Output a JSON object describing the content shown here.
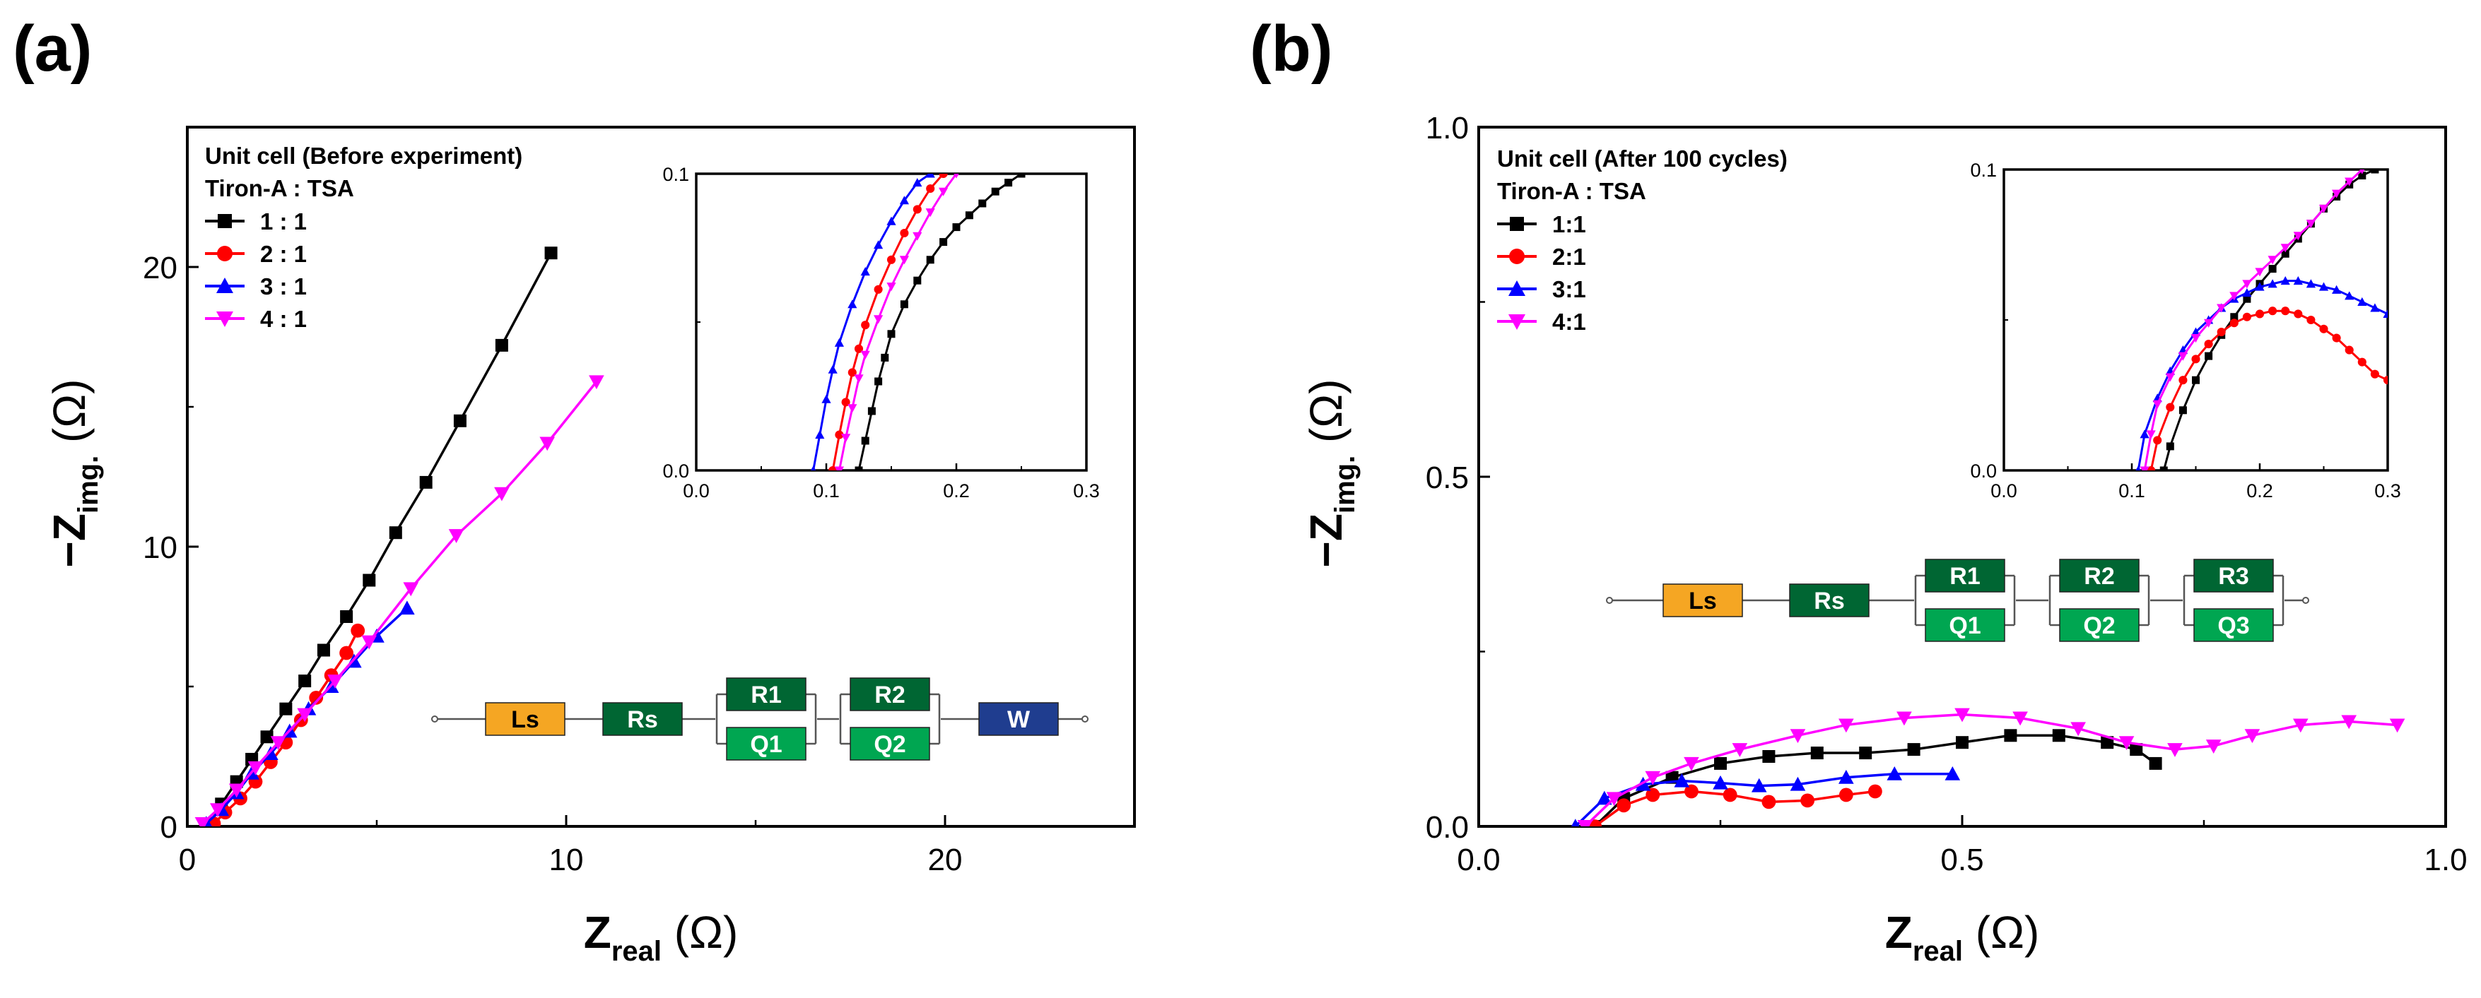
{
  "chart_data": [
    {
      "type": "line",
      "panel_label": "(a)",
      "xlabel": "Z",
      "xlabel_sub": "real",
      "xlabel_unit": " (Ω)",
      "ylabel_prefix": "−Z",
      "ylabel_sub": "img.",
      "ylabel_unit": " (Ω)",
      "xlim": [
        0,
        25
      ],
      "ylim": [
        0,
        25
      ],
      "xticks": [
        0,
        10,
        20
      ],
      "yticks": [
        0,
        10,
        20
      ],
      "legend_title_1": "Unit cell (Before experiment)",
      "legend_title_2": "Tiron-A : TSA",
      "series": [
        {
          "name": "1 : 1",
          "color": "#000000",
          "marker": "square",
          "x": [
            0.6,
            0.9,
            1.3,
            1.7,
            2.1,
            2.6,
            3.1,
            3.6,
            4.2,
            4.8,
            5.5,
            6.3,
            7.2,
            8.3,
            9.6
          ],
          "y": [
            0.1,
            0.8,
            1.6,
            2.4,
            3.2,
            4.2,
            5.2,
            6.3,
            7.5,
            8.8,
            10.5,
            12.3,
            14.5,
            17.2,
            20.5
          ]
        },
        {
          "name": "2 : 1",
          "color": "#ff0000",
          "marker": "circle",
          "x": [
            0.7,
            1.0,
            1.4,
            1.8,
            2.2,
            2.6,
            3.0,
            3.4,
            3.8,
            4.2,
            4.5
          ],
          "y": [
            0.1,
            0.5,
            1.0,
            1.6,
            2.3,
            3.0,
            3.8,
            4.6,
            5.4,
            6.2,
            7.0
          ]
        },
        {
          "name": "3 : 1",
          "color": "#0000ff",
          "marker": "triangle-up",
          "x": [
            0.5,
            0.9,
            1.3,
            1.7,
            2.2,
            2.7,
            3.2,
            3.8,
            4.4,
            5.0,
            5.8
          ],
          "y": [
            0.1,
            0.6,
            1.2,
            1.9,
            2.6,
            3.4,
            4.2,
            5.0,
            5.9,
            6.8,
            7.8
          ]
        },
        {
          "name": "4 : 1",
          "color": "#ff00ff",
          "marker": "triangle-down",
          "x": [
            0.4,
            0.8,
            1.3,
            1.8,
            2.4,
            3.1,
            3.9,
            4.8,
            5.9,
            7.1,
            8.3,
            9.5,
            10.8
          ],
          "y": [
            0.1,
            0.6,
            1.3,
            2.1,
            3.0,
            4.0,
            5.2,
            6.6,
            8.5,
            10.4,
            11.9,
            13.7,
            15.9
          ]
        }
      ],
      "inset": {
        "xlim": [
          0,
          0.3
        ],
        "ylim": [
          0,
          0.1
        ],
        "xticks": [
          0.0,
          0.1,
          0.2,
          0.3
        ],
        "yticks": [
          0.0,
          0.1
        ],
        "series": [
          {
            "name": "1 : 1",
            "color": "#000000",
            "marker": "square",
            "x": [
              0.125,
              0.13,
              0.135,
              0.14,
              0.145,
              0.15,
              0.16,
              0.17,
              0.18,
              0.19,
              0.2,
              0.21,
              0.22,
              0.23,
              0.24,
              0.25
            ],
            "y": [
              0.0,
              0.01,
              0.02,
              0.03,
              0.038,
              0.046,
              0.056,
              0.064,
              0.071,
              0.077,
              0.082,
              0.086,
              0.09,
              0.094,
              0.097,
              0.1
            ]
          },
          {
            "name": "2 : 1",
            "color": "#ff0000",
            "marker": "circle",
            "x": [
              0.105,
              0.11,
              0.115,
              0.12,
              0.125,
              0.13,
              0.14,
              0.15,
              0.16,
              0.17,
              0.18,
              0.19
            ],
            "y": [
              0.0,
              0.012,
              0.023,
              0.033,
              0.041,
              0.049,
              0.061,
              0.071,
              0.08,
              0.088,
              0.095,
              0.1
            ]
          },
          {
            "name": "3 : 1",
            "color": "#0000ff",
            "marker": "triangle-up",
            "x": [
              0.09,
              0.095,
              0.1,
              0.105,
              0.11,
              0.12,
              0.13,
              0.14,
              0.15,
              0.16,
              0.17,
              0.18
            ],
            "y": [
              0.0,
              0.012,
              0.024,
              0.034,
              0.043,
              0.056,
              0.067,
              0.076,
              0.084,
              0.091,
              0.097,
              0.1
            ]
          },
          {
            "name": "4 : 1",
            "color": "#ff00ff",
            "marker": "triangle-down",
            "x": [
              0.11,
              0.115,
              0.12,
              0.125,
              0.13,
              0.14,
              0.15,
              0.16,
              0.17,
              0.18,
              0.19,
              0.2
            ],
            "y": [
              0.0,
              0.011,
              0.021,
              0.031,
              0.039,
              0.051,
              0.062,
              0.071,
              0.079,
              0.087,
              0.094,
              0.1
            ]
          }
        ]
      },
      "circuit": {
        "labels": [
          "Ls",
          "Rs",
          "R1",
          "Q1",
          "R2",
          "Q2",
          "W"
        ],
        "colors": {
          "Ls": "#f5a623",
          "dark_green": "#006633",
          "light_green": "#00a651",
          "W": "#1f3d8f"
        }
      }
    },
    {
      "type": "line",
      "panel_label": "(b)",
      "xlabel": "Z",
      "xlabel_sub": "real",
      "xlabel_unit": " (Ω)",
      "ylabel_prefix": "−Z",
      "ylabel_sub": "img.",
      "ylabel_unit": " (Ω)",
      "xlim": [
        0,
        1.0
      ],
      "ylim": [
        0,
        1.0
      ],
      "xticks": [
        0.0,
        0.5,
        1.0
      ],
      "yticks": [
        0.0,
        0.5,
        1.0
      ],
      "legend_title_1": "Unit cell (After 100 cycles)",
      "legend_title_2": "Tiron-A : TSA",
      "series": [
        {
          "name": "1:1",
          "color": "#000000",
          "marker": "square",
          "x": [
            0.12,
            0.15,
            0.2,
            0.25,
            0.3,
            0.35,
            0.4,
            0.45,
            0.5,
            0.55,
            0.6,
            0.65,
            0.68,
            0.7
          ],
          "y": [
            0.0,
            0.04,
            0.07,
            0.09,
            0.1,
            0.105,
            0.105,
            0.11,
            0.12,
            0.13,
            0.13,
            0.12,
            0.11,
            0.09
          ]
        },
        {
          "name": "2:1",
          "color": "#ff0000",
          "marker": "circle",
          "x": [
            0.12,
            0.15,
            0.18,
            0.22,
            0.26,
            0.3,
            0.34,
            0.38,
            0.41
          ],
          "y": [
            0.0,
            0.03,
            0.045,
            0.05,
            0.045,
            0.035,
            0.037,
            0.045,
            0.05
          ]
        },
        {
          "name": "3:1",
          "color": "#0000ff",
          "marker": "triangle-up",
          "x": [
            0.1,
            0.13,
            0.17,
            0.21,
            0.25,
            0.29,
            0.33,
            0.38,
            0.43,
            0.49
          ],
          "y": [
            0.0,
            0.04,
            0.06,
            0.065,
            0.062,
            0.058,
            0.06,
            0.07,
            0.075,
            0.075
          ]
        },
        {
          "name": "4:1",
          "color": "#ff00ff",
          "marker": "triangle-down",
          "x": [
            0.11,
            0.14,
            0.18,
            0.22,
            0.27,
            0.33,
            0.38,
            0.44,
            0.5,
            0.56,
            0.62,
            0.67,
            0.72,
            0.76,
            0.8,
            0.85,
            0.9,
            0.95
          ],
          "y": [
            0.0,
            0.04,
            0.07,
            0.09,
            0.11,
            0.13,
            0.145,
            0.155,
            0.16,
            0.155,
            0.14,
            0.12,
            0.11,
            0.115,
            0.13,
            0.145,
            0.15,
            0.145
          ]
        }
      ],
      "inset": {
        "xlim": [
          0,
          0.3
        ],
        "ylim": [
          0,
          0.1
        ],
        "xticks": [
          0.0,
          0.1,
          0.2,
          0.3
        ],
        "yticks": [
          0.0,
          0.1
        ],
        "series": [
          {
            "name": "1:1",
            "color": "#000000",
            "marker": "square",
            "x": [
              0.125,
              0.13,
              0.14,
              0.15,
              0.16,
              0.17,
              0.18,
              0.19,
              0.2,
              0.21,
              0.22,
              0.23,
              0.24,
              0.25,
              0.26,
              0.27,
              0.28,
              0.29
            ],
            "y": [
              0.0,
              0.008,
              0.02,
              0.03,
              0.038,
              0.045,
              0.051,
              0.057,
              0.062,
              0.067,
              0.072,
              0.077,
              0.082,
              0.087,
              0.091,
              0.095,
              0.098,
              0.1
            ]
          },
          {
            "name": "2:1",
            "color": "#ff0000",
            "marker": "circle",
            "x": [
              0.115,
              0.12,
              0.13,
              0.14,
              0.15,
              0.16,
              0.17,
              0.18,
              0.19,
              0.2,
              0.21,
              0.22,
              0.23,
              0.24,
              0.25,
              0.26,
              0.27,
              0.28,
              0.29,
              0.3
            ],
            "y": [
              0.0,
              0.01,
              0.021,
              0.03,
              0.037,
              0.042,
              0.046,
              0.049,
              0.051,
              0.052,
              0.053,
              0.053,
              0.052,
              0.05,
              0.047,
              0.044,
              0.04,
              0.036,
              0.032,
              0.03
            ]
          },
          {
            "name": "3:1",
            "color": "#0000ff",
            "marker": "triangle-up",
            "x": [
              0.105,
              0.11,
              0.12,
              0.13,
              0.14,
              0.15,
              0.16,
              0.17,
              0.18,
              0.19,
              0.2,
              0.21,
              0.22,
              0.23,
              0.24,
              0.25,
              0.26,
              0.27,
              0.28,
              0.29,
              0.3
            ],
            "y": [
              0.0,
              0.012,
              0.024,
              0.033,
              0.04,
              0.046,
              0.05,
              0.054,
              0.057,
              0.059,
              0.061,
              0.062,
              0.063,
              0.063,
              0.062,
              0.061,
              0.06,
              0.058,
              0.056,
              0.054,
              0.052
            ]
          },
          {
            "name": "4:1",
            "color": "#ff00ff",
            "marker": "triangle-down",
            "x": [
              0.11,
              0.115,
              0.12,
              0.13,
              0.14,
              0.15,
              0.16,
              0.17,
              0.18,
              0.19,
              0.2,
              0.21,
              0.22,
              0.23,
              0.24,
              0.25,
              0.26,
              0.27,
              0.28
            ],
            "y": [
              0.0,
              0.012,
              0.022,
              0.031,
              0.038,
              0.044,
              0.049,
              0.054,
              0.058,
              0.062,
              0.066,
              0.07,
              0.074,
              0.078,
              0.082,
              0.087,
              0.092,
              0.096,
              0.1
            ]
          }
        ]
      },
      "circuit": {
        "labels": [
          "Ls",
          "Rs",
          "R1",
          "Q1",
          "R2",
          "Q2",
          "R3",
          "Q3"
        ],
        "colors": {
          "Ls": "#f5a623",
          "dark_green": "#006633",
          "light_green": "#00a651"
        }
      }
    }
  ]
}
